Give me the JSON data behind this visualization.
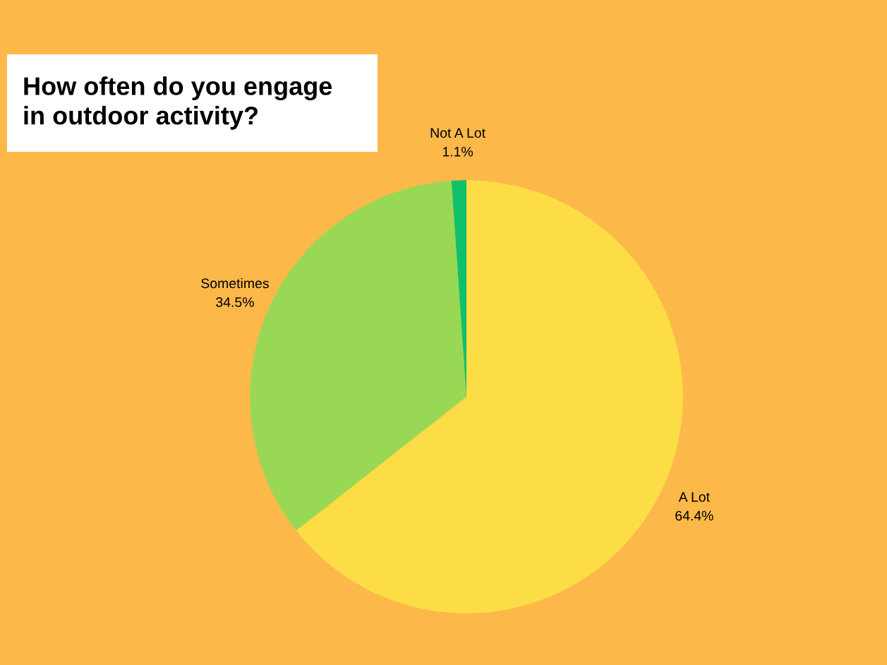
{
  "chart_data": {
    "type": "pie",
    "title": "How often do you engage\nin outdoor activity?",
    "categories": [
      "A Lot",
      "Sometimes",
      "Not A Lot"
    ],
    "values": [
      64.4,
      34.5,
      1.1
    ],
    "value_labels": [
      "64.4%",
      "34.5%",
      "1.1%"
    ],
    "colors": [
      "#fddd45",
      "#99d855",
      "#0fc16a"
    ]
  }
}
